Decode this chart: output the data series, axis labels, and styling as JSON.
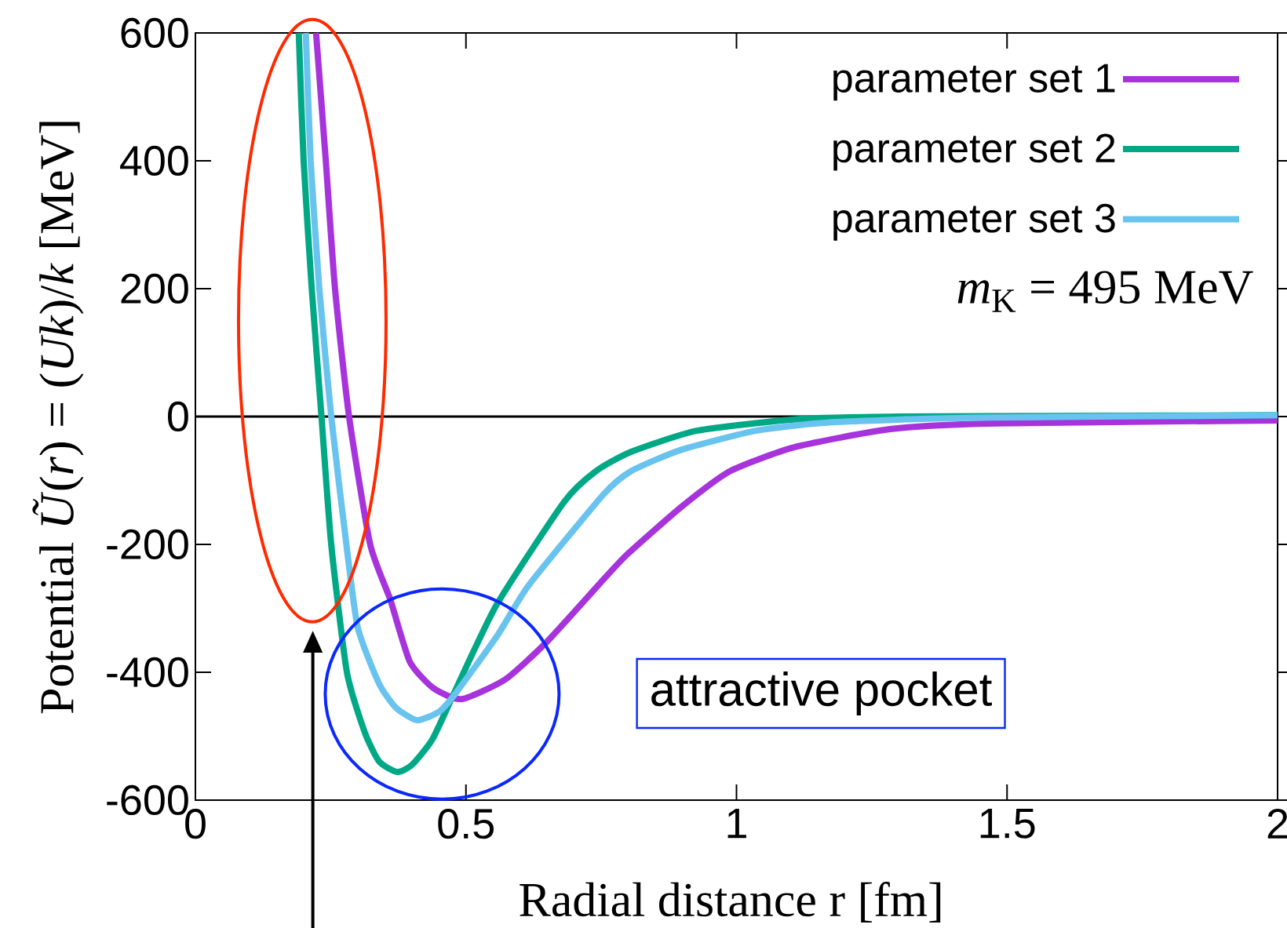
{
  "chart_data": {
    "type": "line",
    "xlabel": "Radial distance r [fm]",
    "ylabel": "Potential *Ũ*(*r*) = (*Uk*)/*k* [MeV]",
    "xlim": [
      0,
      2
    ],
    "ylim": [
      -600,
      600
    ],
    "xticks": [
      0,
      0.5,
      1,
      1.5,
      2
    ],
    "yticks": [
      -600,
      -400,
      -200,
      0,
      200,
      400,
      600
    ],
    "legend": "top right",
    "grid": false,
    "line_style": "solid",
    "marker": "none",
    "ref_lines": [
      {
        "axis": "y",
        "value": 0,
        "color": "#000000"
      }
    ],
    "annotations": [
      "*m*$_{K}$ = 495 MeV",
      "attractive pocket"
    ],
    "series": [
      {
        "name": "parameter set 1",
        "color": "#a633dc",
        "x": [
          0.223,
          0.241,
          0.258,
          0.284,
          0.323,
          0.36,
          0.396,
          0.44,
          0.492,
          0.573,
          0.65,
          0.754,
          0.8,
          0.9,
          0.989,
          1.107,
          1.281,
          1.463,
          2.0
        ],
        "values": [
          600,
          400,
          200,
          0,
          -200,
          -286,
          -383,
          -425,
          -442,
          -411,
          -352,
          -255,
          -214,
          -140,
          -85,
          -48,
          -20,
          -11,
          -6
        ]
      },
      {
        "name": "parameter set 2",
        "color": "#00a886",
        "x": [
          0.191,
          0.2,
          0.215,
          0.233,
          0.251,
          0.28,
          0.313,
          0.34,
          0.373,
          0.4,
          0.438,
          0.479,
          0.557,
          0.682,
          0.741,
          0.806,
          0.928,
          1.115,
          1.3,
          1.6,
          2.0
        ],
        "values": [
          600,
          400,
          200,
          0,
          -200,
          -400,
          -494,
          -540,
          -556,
          -545,
          -505,
          -431,
          -294,
          -133,
          -85,
          -55,
          -22,
          -4,
          0,
          1,
          2
        ]
      },
      {
        "name": "parameter set 3",
        "color": "#68c3ee",
        "x": [
          0.204,
          0.213,
          0.229,
          0.251,
          0.279,
          0.3,
          0.339,
          0.37,
          0.409,
          0.45,
          0.479,
          0.557,
          0.616,
          0.754,
          0.806,
          0.898,
          1.037,
          1.176,
          1.437,
          2.0
        ],
        "values": [
          600,
          400,
          200,
          0,
          -200,
          -330,
          -417,
          -455,
          -475,
          -462,
          -435,
          -344,
          -264,
          -122,
          -85,
          -52,
          -22,
          -9,
          -2,
          2
        ]
      }
    ]
  }
}
